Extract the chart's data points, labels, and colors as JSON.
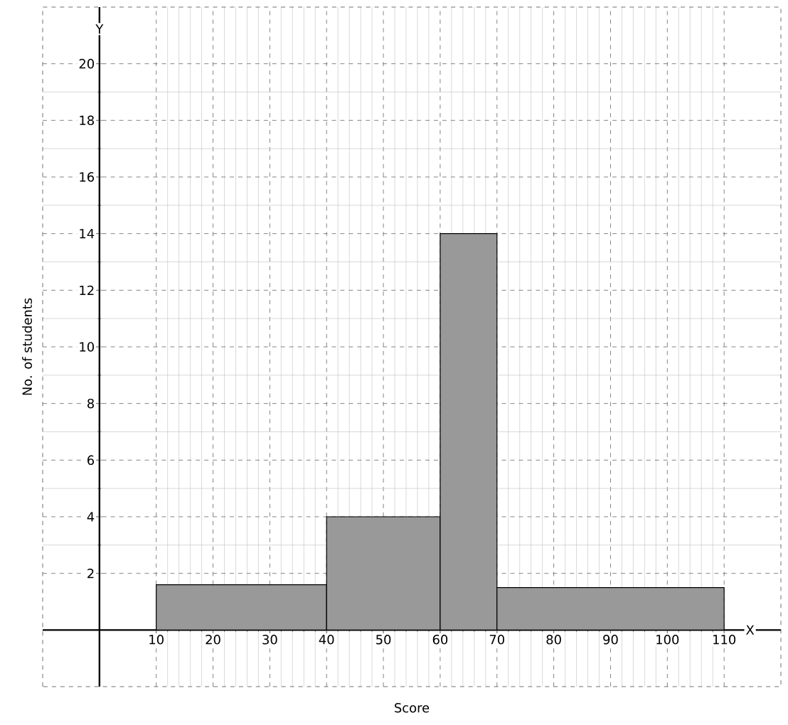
{
  "chart_data": {
    "type": "histogram",
    "bins": [
      10,
      40,
      60,
      70,
      110
    ],
    "values": [
      1.6,
      4,
      14,
      1.5
    ],
    "color": "#999999",
    "xlabel": "Score",
    "ylabel": "No. of students",
    "xlim": [
      -10,
      120
    ],
    "ylim": [
      -2,
      22
    ],
    "xticks": [
      10,
      20,
      30,
      40,
      50,
      60,
      70,
      80,
      90,
      100,
      110
    ],
    "yticks": [
      2,
      4,
      6,
      8,
      10,
      12,
      14,
      16,
      18,
      20
    ],
    "grid": true,
    "annotations": [
      "X",
      "Y"
    ]
  }
}
